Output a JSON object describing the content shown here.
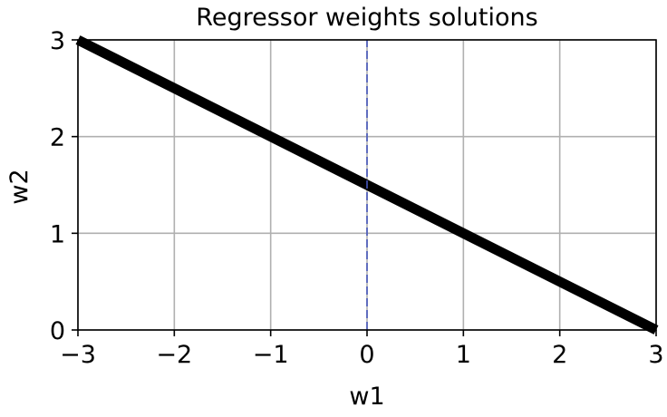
{
  "chart_data": {
    "type": "line",
    "title": "Regressor weights solutions",
    "xlabel": "w1",
    "ylabel": "w2",
    "xlim": [
      -3,
      3
    ],
    "ylim": [
      0,
      3
    ],
    "xticks": [
      -3,
      -2,
      -1,
      0,
      1,
      2,
      3
    ],
    "xtick_labels": [
      "−3",
      "−2",
      "−1",
      "0",
      "1",
      "2",
      "3"
    ],
    "yticks": [
      0,
      1,
      2,
      3
    ],
    "ytick_labels": [
      "0",
      "1",
      "2",
      "3"
    ],
    "grid": true,
    "series": [
      {
        "style": "solid",
        "color": "#000000",
        "x": [
          -3,
          3
        ],
        "y": [
          3,
          0
        ]
      },
      {
        "style": "dashed",
        "color": "#4455bb",
        "x": [
          0,
          0
        ],
        "y": [
          0,
          3
        ]
      }
    ]
  }
}
